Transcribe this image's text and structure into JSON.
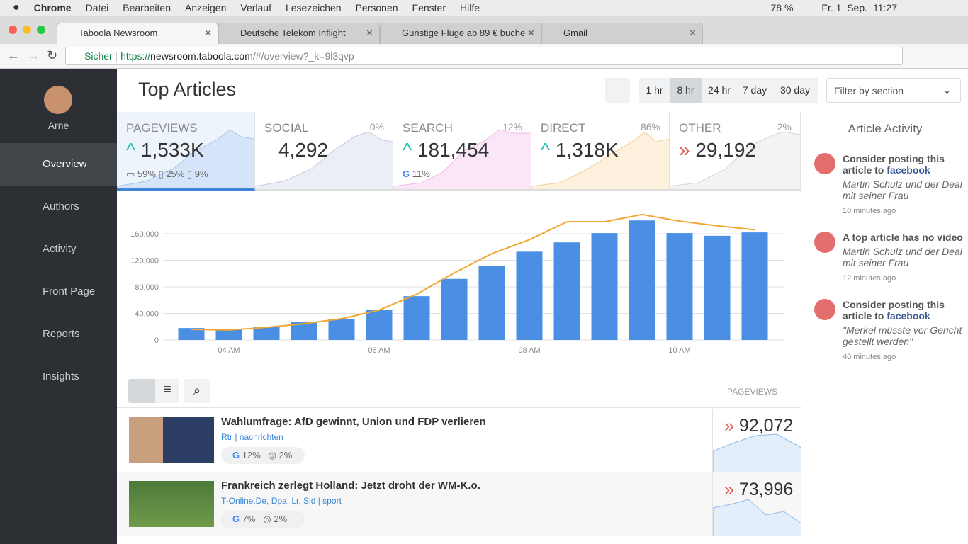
{
  "menubar": {
    "app": "Chrome",
    "items": [
      "Datei",
      "Bearbeiten",
      "Anzeigen",
      "Verlauf",
      "Lesezeichen",
      "Personen",
      "Fenster",
      "Hilfe"
    ],
    "battery": "78 %",
    "date": "Fr. 1. Sep.",
    "time": "11:27"
  },
  "tabs": [
    "Taboola Newsroom",
    "Deutsche Telekom Inflight",
    "Günstige Flüge ab 89 € buche",
    "Gmail"
  ],
  "url": {
    "secure": "Sicher",
    "scheme": "https://",
    "host": "newsroom.taboola.com",
    "path": "/#/overview?_k=9l3qvp"
  },
  "sidebar": {
    "user": "Arne",
    "nav": [
      "Overview",
      "Authors",
      "Activity",
      "Front Page",
      "Reports",
      "Insights"
    ]
  },
  "header": {
    "title": "Top Articles",
    "ranges": [
      "1 hr",
      "8 hr",
      "24 hr",
      "7 day",
      "30 day"
    ],
    "filter": "Filter by section"
  },
  "stats": [
    {
      "label": "PAGEVIEWS",
      "value": "1,533K",
      "subs": [
        "59%",
        "25%",
        "9%"
      ]
    },
    {
      "label": "SOCIAL",
      "value": "4,292",
      "percent": "0%"
    },
    {
      "label": "SEARCH",
      "value": "181,454",
      "percent": "12%",
      "subs": [
        "11%"
      ]
    },
    {
      "label": "DIRECT",
      "value": "1,318K",
      "percent": "86%"
    },
    {
      "label": "OTHER",
      "value": "29,192",
      "percent": "2%"
    }
  ],
  "chart_data": {
    "type": "bar",
    "categories": [
      null,
      "04 AM",
      null,
      null,
      null,
      "06 AM",
      null,
      null,
      null,
      "08 AM",
      null,
      null,
      null,
      "10 AM",
      null,
      null
    ],
    "series": [
      {
        "type": "bar",
        "color": "#4a8fe4",
        "values": [
          18000,
          16000,
          20000,
          26700,
          32000,
          44800,
          66000,
          92000,
          112000,
          133000,
          147000,
          161000,
          180000,
          161000,
          157000,
          162000
        ]
      },
      {
        "type": "line",
        "color": "#f2a630",
        "values": [
          16000,
          15000,
          19000,
          24500,
          32000,
          45000,
          69000,
          101000,
          130000,
          151000,
          178000,
          178000,
          189000,
          179000,
          172000,
          166000
        ]
      }
    ],
    "ylim": [
      0,
      200000
    ],
    "yticks": [
      0,
      {
        "value": 40000,
        "label": "40,000"
      },
      {
        "value": 80000,
        "label": "80,000"
      },
      {
        "value": 120000,
        "label": "120,000"
      },
      {
        "value": 160000,
        "label": "160,000"
      }
    ],
    "grid": true
  },
  "list": {
    "header": "PAGEVIEWS",
    "articles": [
      {
        "title": "Wahlumfrage: AfD gewinnt, Union und FDP verlieren",
        "source": "Rtr | nachrichten",
        "search": "12%",
        "social": "2%",
        "views": "92,072"
      },
      {
        "title": "Frankreich zerlegt Holland: Jetzt droht der WM-K.o.",
        "source": "T-Online.De, Dpa, Lr, Sid | sport",
        "search": "7%",
        "social": "2%",
        "views": "73,996"
      }
    ]
  },
  "activity": {
    "title": "Article Activity",
    "items": [
      {
        "message": "Consider posting this article to",
        "network": "facebook",
        "article": "Martin Schulz und der Deal mit seiner Frau",
        "time": "10 minutes ago"
      },
      {
        "message": "A top article has no video",
        "article": "Martin Schulz und der Deal mit seiner Frau",
        "time": "12 minutes ago"
      },
      {
        "message": "Consider posting this article to",
        "network": "facebook",
        "article": "\"Merkel müsste vor Gericht gestellt werden\"",
        "time": "40 minutes ago"
      }
    ]
  }
}
